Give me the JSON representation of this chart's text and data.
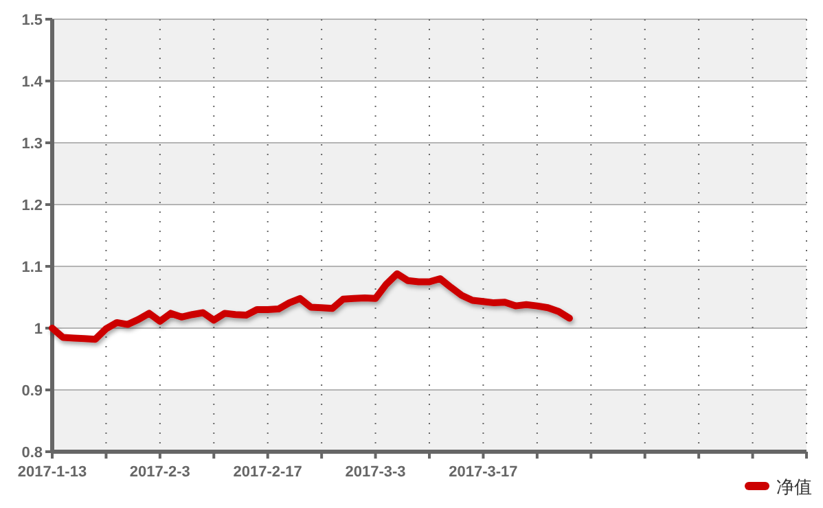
{
  "chart_data": {
    "type": "line",
    "categories": [
      "2017-1-13",
      null,
      null,
      null,
      null,
      null,
      null,
      null,
      null,
      null,
      "2017-2-3",
      null,
      null,
      null,
      null,
      null,
      null,
      null,
      null,
      null,
      "2017-2-17",
      null,
      null,
      null,
      null,
      null,
      null,
      null,
      null,
      null,
      "2017-3-3",
      null,
      null,
      null,
      null,
      null,
      null,
      null,
      null,
      null,
      "2017-3-17",
      null,
      null,
      null,
      null,
      null,
      null,
      null,
      null,
      null,
      null,
      null,
      null,
      null,
      null,
      null,
      null,
      null,
      null,
      null,
      null,
      null,
      null,
      null,
      null,
      null,
      null,
      null,
      null,
      null,
      null
    ],
    "series": [
      {
        "name": "净值",
        "color": "#cc0000",
        "values": [
          1.0,
          0.985,
          0.984,
          0.983,
          0.982,
          0.999,
          1.009,
          1.006,
          1.014,
          1.024,
          1.011,
          1.024,
          1.018,
          1.022,
          1.025,
          1.013,
          1.024,
          1.022,
          1.021,
          1.03,
          1.03,
          1.031,
          1.041,
          1.048,
          1.034,
          1.033,
          1.032,
          1.047,
          1.048,
          1.049,
          1.048,
          1.071,
          1.088,
          1.077,
          1.075,
          1.075,
          1.08,
          1.066,
          1.053,
          1.045,
          1.043,
          1.041,
          1.042,
          1.036,
          1.038,
          1.036,
          1.033,
          1.027,
          1.016,
          null,
          null,
          null,
          null,
          null,
          null,
          null,
          null,
          null,
          null,
          null,
          null,
          null,
          null,
          null,
          null,
          null,
          null,
          null,
          null,
          null,
          null
        ]
      }
    ],
    "ylim": [
      0.8,
      1.5
    ],
    "yticks": [
      0.8,
      0.9,
      1,
      1.1,
      1.2,
      1.3,
      1.4,
      1.5
    ],
    "grid": true,
    "legend": "bottom right",
    "marker": "none",
    "line_style": "solid"
  }
}
